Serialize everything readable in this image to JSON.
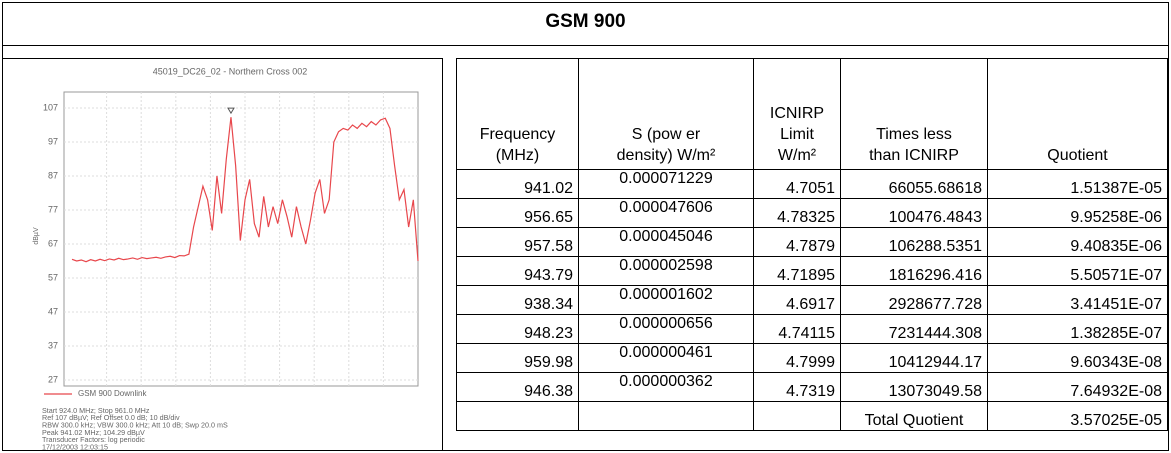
{
  "title": "GSM 900",
  "spectrum": {
    "type": "line",
    "title": "45019_DC26_02 - Northern Cross 002",
    "y_label": "dBµV",
    "series": [
      {
        "name": "GSM 900 Downlink",
        "color": "#e8474c",
        "x": [
          924,
          924.5,
          925,
          925.5,
          926,
          926.5,
          927,
          927.5,
          928,
          928.5,
          929,
          929.5,
          930,
          930.5,
          931,
          931.5,
          932,
          932.5,
          933,
          933.5,
          934,
          934.5,
          935,
          935.5,
          936,
          936.5,
          937,
          937.5,
          938,
          938.5,
          939,
          939.5,
          940,
          940.5,
          941,
          941.5,
          942,
          942.5,
          943,
          943.5,
          944,
          944.5,
          945,
          945.5,
          946,
          946.5,
          947,
          947.5,
          948,
          948.5,
          949,
          949.5,
          950,
          950.5,
          951,
          951.5,
          952,
          952.5,
          953,
          953.5,
          954,
          954.5,
          955,
          955.5,
          956,
          956.5,
          957,
          957.5,
          958,
          958.5,
          959,
          959.5,
          960,
          960.5,
          961
        ],
        "values": [
          62.5,
          62,
          62.3,
          61.8,
          62.4,
          62,
          62.5,
          62.1,
          62.6,
          62.3,
          62.8,
          62.4,
          62.6,
          62.9,
          62.5,
          63,
          62.7,
          62.9,
          63.1,
          62.8,
          63.2,
          63.4,
          63,
          63.6,
          63.5,
          64,
          72,
          78,
          84,
          80,
          71,
          87,
          76,
          92,
          104.3,
          90,
          68,
          80,
          86,
          73,
          69,
          81,
          72,
          78,
          73,
          80,
          75,
          69,
          78,
          72,
          67,
          74,
          82,
          86,
          76,
          80,
          97,
          100,
          101,
          100.5,
          102,
          101,
          102.5,
          101.5,
          103,
          102,
          103.5,
          104,
          101,
          90,
          80,
          83,
          72,
          80,
          62
        ]
      }
    ],
    "xlim": [
      924,
      961
    ],
    "ylim": [
      27,
      107
    ],
    "yticks": [
      27,
      37,
      47,
      57,
      67,
      77,
      87,
      97,
      107
    ],
    "grid": true,
    "info": [
      "Start 924.0 MHz; Stop 961.0 MHz",
      "Ref 107 dBµV; Ref Offset 0.0 dB; 10 dB/div",
      "RBW 300.0 kHz; VBW 300.0 kHz; Att 10 dB; Swp 20.0 mS",
      "Peak 941.02 MHz; 104.29 dBµV",
      "Transducer Factors: log periodic",
      "17/12/2003 12:03:15"
    ]
  },
  "table": {
    "header": [
      [
        "Frequency",
        "(MHz)"
      ],
      [
        "S (pow er",
        "density) W/m²"
      ],
      [
        "ICNIRP",
        "Limit",
        "W/m²"
      ],
      [
        "Times less",
        "than ICNIRP"
      ],
      [
        "Quotient"
      ]
    ],
    "rows": [
      [
        "941.02",
        "0.000071229",
        "4.7051",
        "66055.68618",
        "1.51387E-05"
      ],
      [
        "956.65",
        "0.000047606",
        "4.78325",
        "100476.4843",
        "9.95258E-06"
      ],
      [
        "957.58",
        "0.000045046",
        "4.7879",
        "106288.5351",
        "9.40835E-06"
      ],
      [
        "943.79",
        "0.000002598",
        "4.71895",
        "1816296.416",
        "5.50571E-07"
      ],
      [
        "938.34",
        "0.000001602",
        "4.6917",
        "2928677.728",
        "3.41451E-07"
      ],
      [
        "948.23",
        "0.000000656",
        "4.74115",
        "7231444.308",
        "1.38285E-07"
      ],
      [
        "959.98",
        "0.000000461",
        "4.7999",
        "10412944.17",
        "9.60343E-08"
      ],
      [
        "946.38",
        "0.000000362",
        "4.7319",
        "13073049.58",
        "7.64932E-08"
      ]
    ],
    "total": {
      "label": "Total Quotient",
      "value": "3.57025E-05"
    }
  }
}
